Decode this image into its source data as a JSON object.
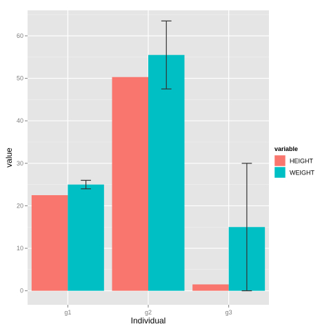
{
  "chart_data": {
    "type": "bar",
    "categories": [
      "g1",
      "g2",
      "g3"
    ],
    "xlabel": "Individual",
    "ylabel": "value",
    "ylim": [
      -3.3,
      66
    ],
    "yticks": [
      0,
      10,
      20,
      30,
      40,
      50,
      60
    ],
    "grid": true,
    "legend": {
      "title": "variable",
      "placement": "right"
    },
    "series": [
      {
        "name": "HEIGHT",
        "color": "#F8766D",
        "values": [
          22.5,
          50.3,
          1.5
        ]
      },
      {
        "name": "WEIGHT",
        "color": "#00BFC4",
        "values": [
          25,
          55.5,
          15
        ],
        "error_low": [
          24,
          47.5,
          0
        ],
        "error_high": [
          26,
          63.5,
          30
        ]
      }
    ]
  }
}
